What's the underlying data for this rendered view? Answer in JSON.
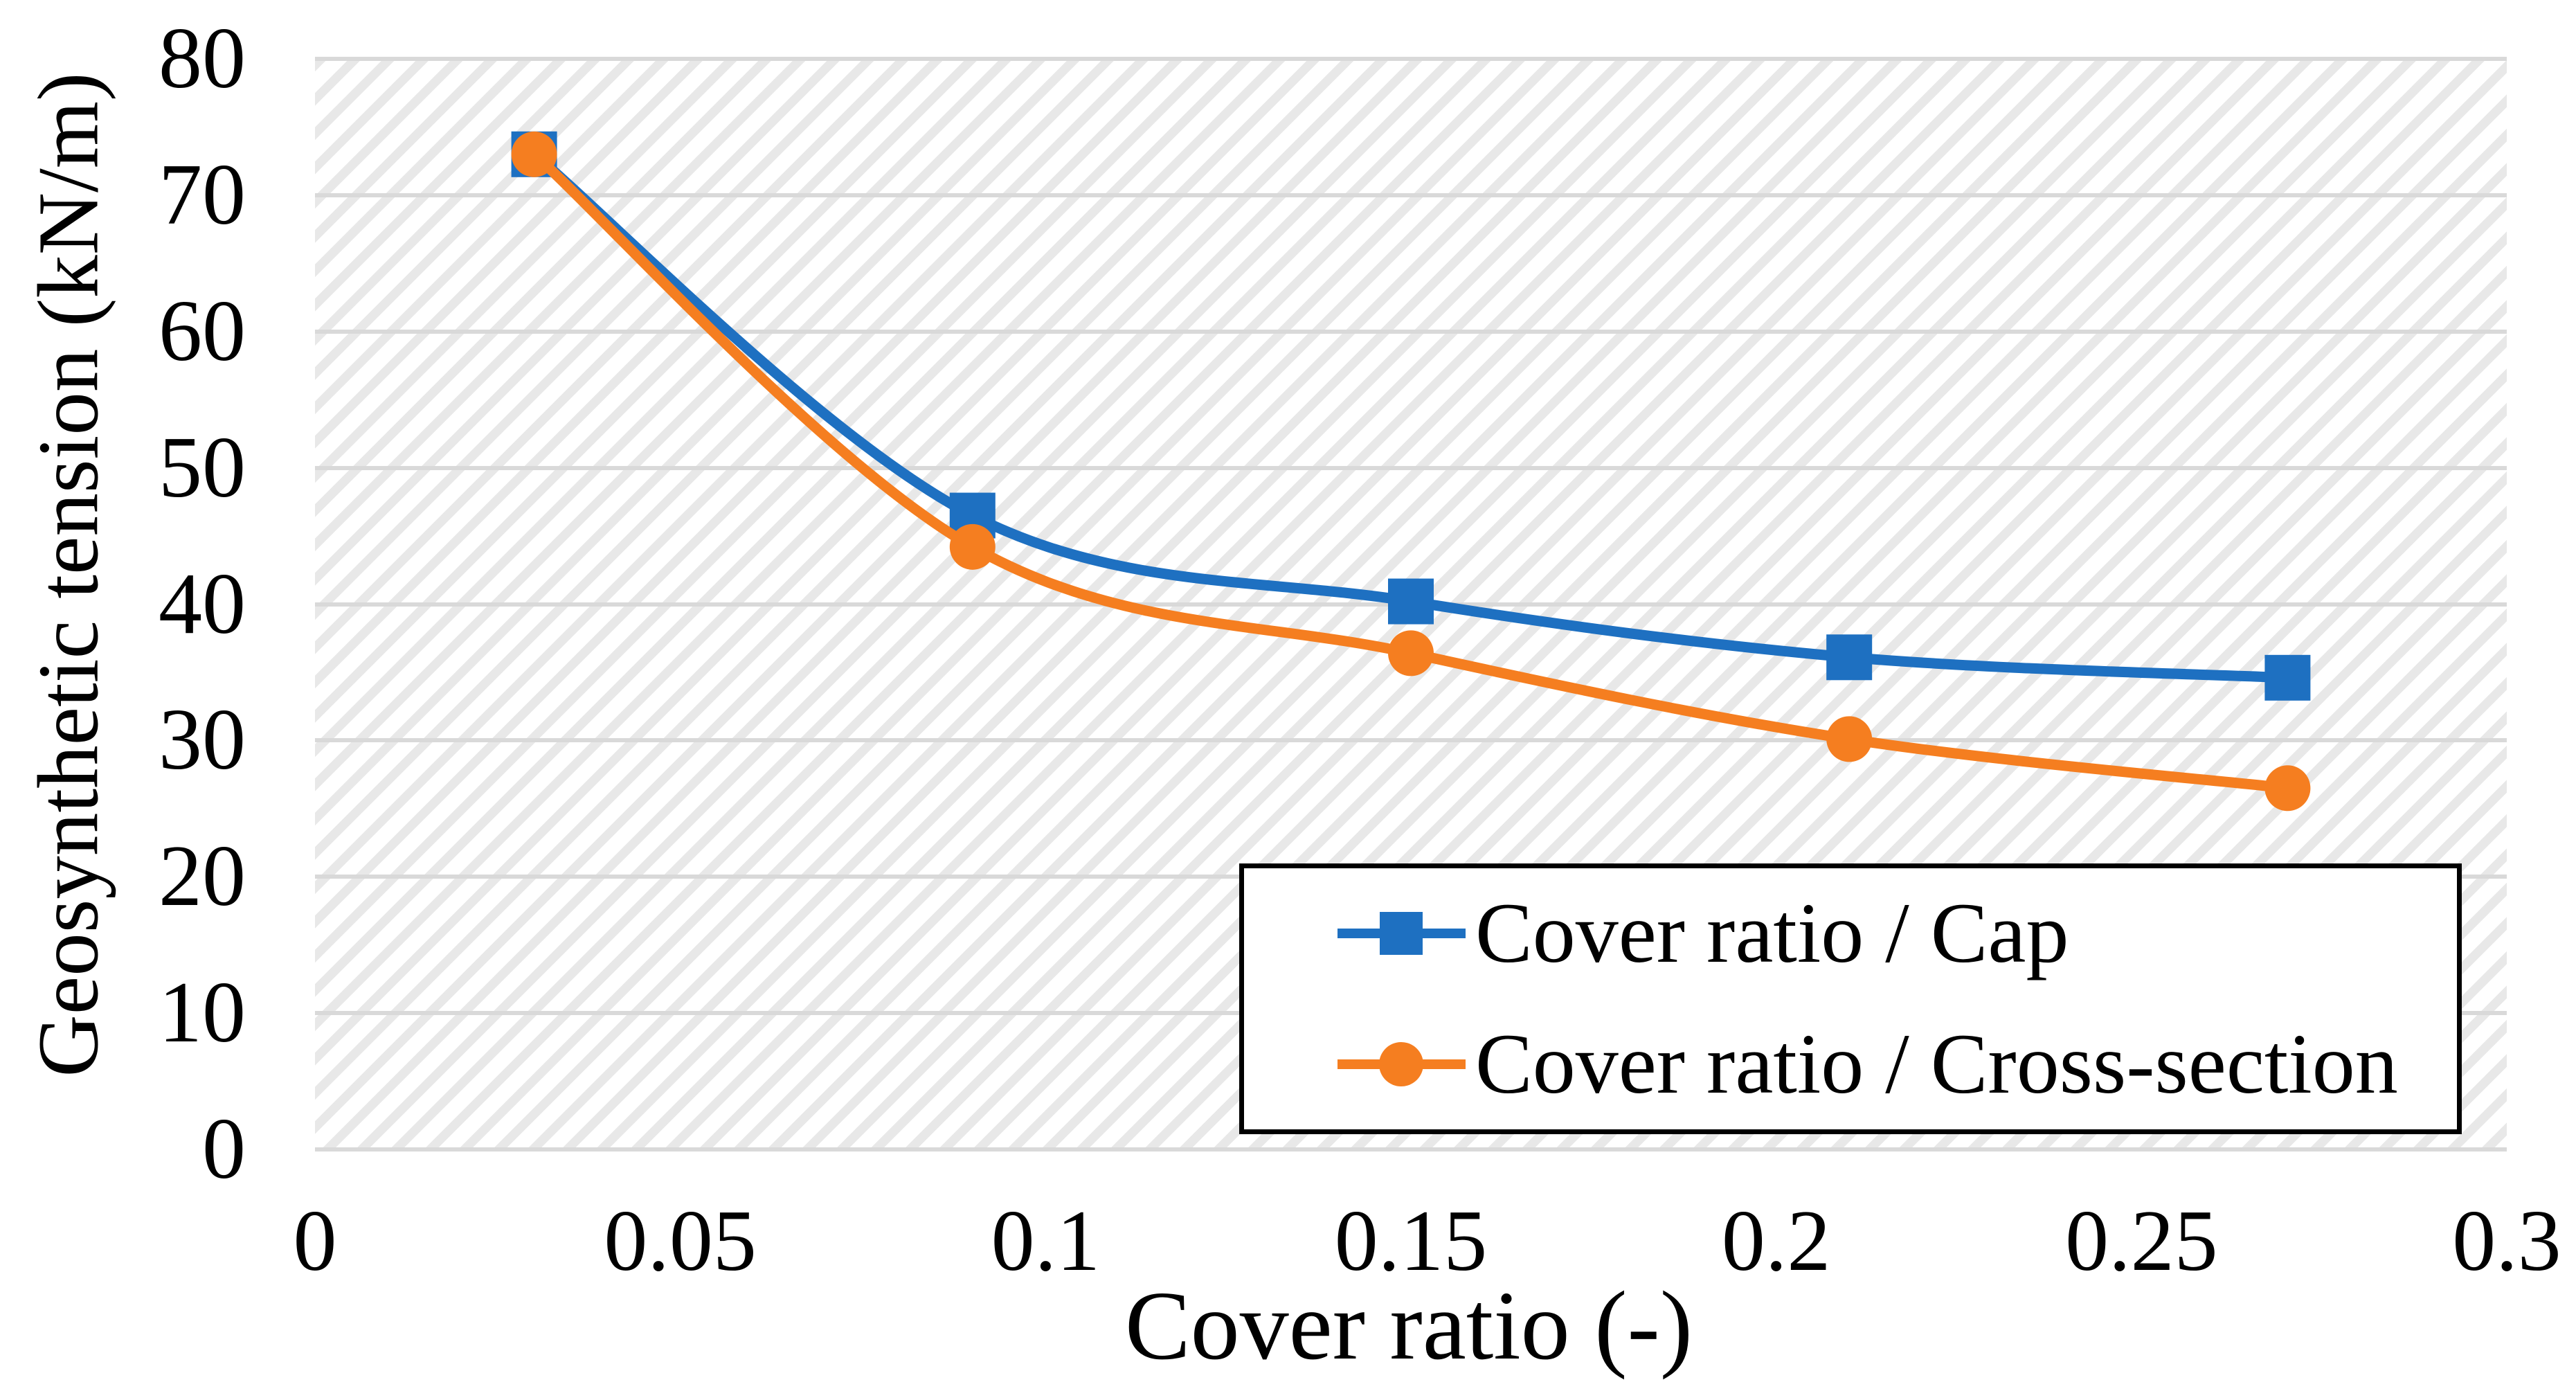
{
  "chart_data": {
    "type": "line",
    "title": "",
    "xlabel": "Cover ratio (-)",
    "ylabel": "Geosynthetic tension (kN/m)",
    "x": [
      0.03,
      0.09,
      0.15,
      0.21,
      0.27
    ],
    "series": [
      {
        "name": "Cover ratio / Cap",
        "marker": "square",
        "color": "#1E70C1",
        "values": [
          73,
          46.5,
          40.2,
          36.1,
          34.6
        ]
      },
      {
        "name": "Cover ratio / Cross-section",
        "marker": "circle",
        "color": "#F57E20",
        "values": [
          73,
          44.2,
          36.4,
          30.1,
          26.5
        ]
      }
    ],
    "xlim": [
      0,
      0.3
    ],
    "ylim": [
      0,
      80
    ],
    "x_ticks": [
      0,
      0.05,
      0.1,
      0.15,
      0.2,
      0.25,
      0.3
    ],
    "y_ticks": [
      0,
      10,
      20,
      30,
      40,
      50,
      60,
      70,
      80
    ],
    "grid": "horizontal",
    "gridline_color": "#D9D9D9",
    "background_pattern": "light diagonal hatch",
    "line_style": "smooth",
    "legend_position": "inside bottom-right",
    "legend_border_color": "#000000",
    "text_color": "#000000"
  }
}
